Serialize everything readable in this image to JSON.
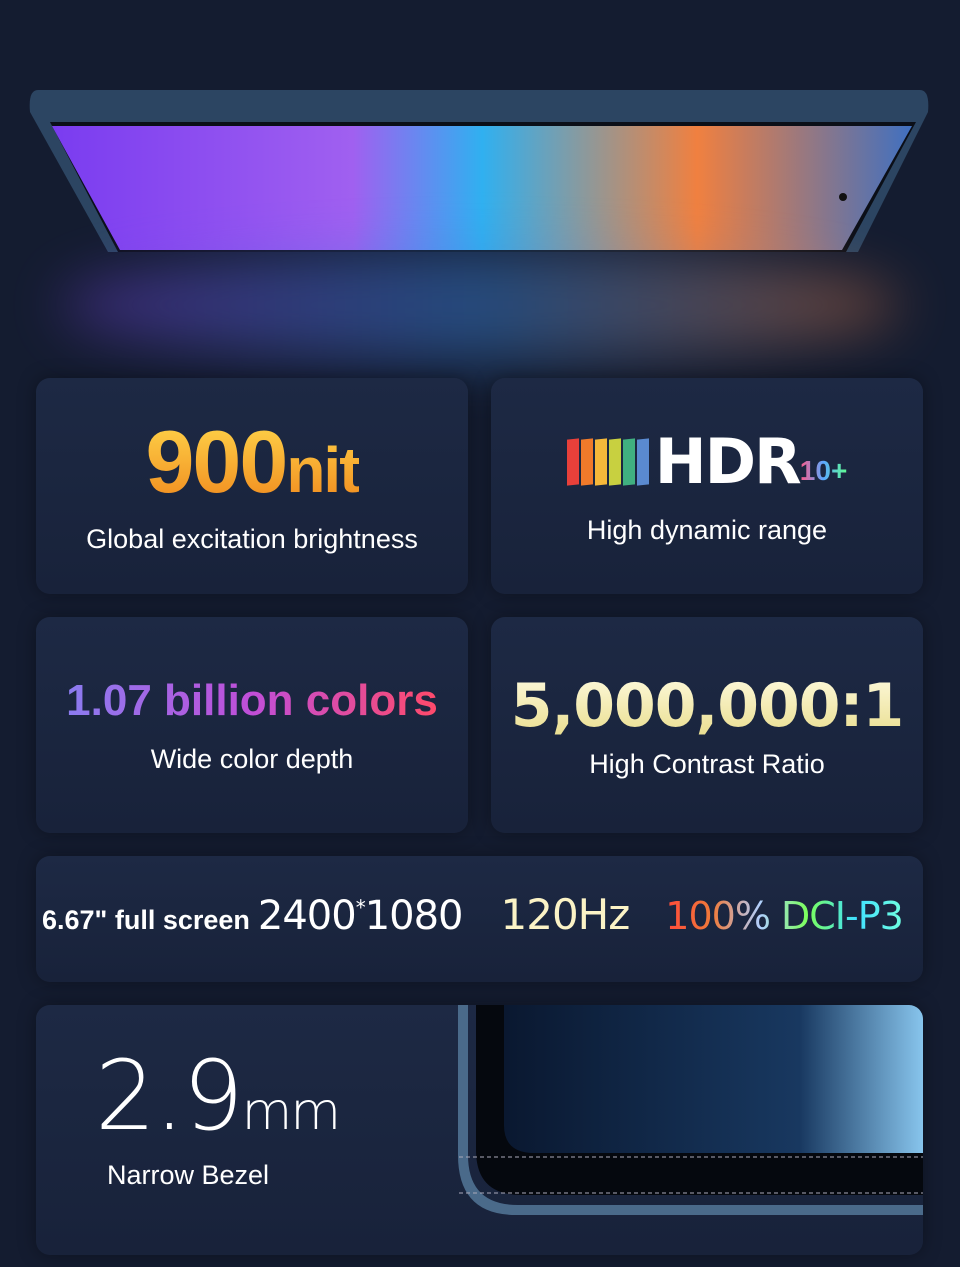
{
  "cards": [
    {
      "headline": "900",
      "unit": "nit",
      "subtitle": "Global excitation brightness"
    },
    {
      "logo_text": "HDR",
      "logo_suffix": "10+",
      "subtitle": "High dynamic range"
    },
    {
      "headline": "1.07 billion colors",
      "subtitle": "Wide color depth"
    },
    {
      "headline": "5,000,000:1",
      "subtitle": "High Contrast Ratio"
    }
  ],
  "specs": {
    "screen": "6.67\" full screen",
    "res_a": "2400",
    "res_sep": "*",
    "res_b": "1080",
    "refresh": "120Hz",
    "gamut": "100% DCI-P3"
  },
  "bezel": {
    "value": "2.9",
    "unit": "mm",
    "label": "Narrow Bezel"
  },
  "colors": {
    "background": "#141c30",
    "card": "#1d2944",
    "brightness_accent": "#f5a623"
  }
}
